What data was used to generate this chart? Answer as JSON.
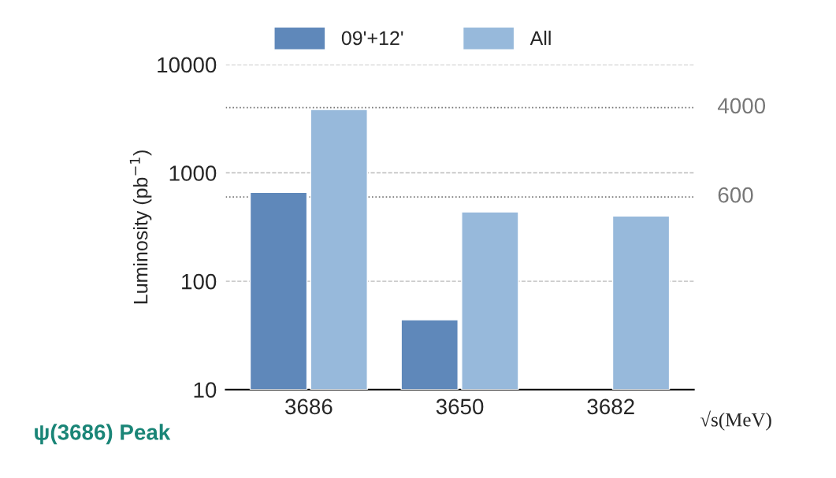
{
  "chart_data": {
    "type": "bar",
    "categories": [
      "3686",
      "3650",
      "3682"
    ],
    "series": [
      {
        "name": "09'+12'",
        "color": "#5f88ba",
        "values": [
          660,
          44,
          null
        ]
      },
      {
        "name": "All",
        "color": "#97b9db",
        "values": [
          3850,
          436,
          400
        ]
      }
    ],
    "ylabel": "Luminosity (pb$^{−1}$)",
    "xlabel": "√s(MeV)",
    "log": true,
    "ylim": [
      10,
      10000
    ],
    "yticks": [
      10,
      100,
      1000,
      10000
    ],
    "grid": "y",
    "legend": "top",
    "ref_lines": [
      {
        "axis": "y",
        "value": 4000,
        "label": "4000",
        "color": "#777777",
        "line_style": "dotted"
      },
      {
        "axis": "y",
        "value": 600,
        "label": "600",
        "color": "#777777",
        "line_style": "dotted"
      }
    ],
    "annotations": [
      "ψ(3686) Peak"
    ]
  }
}
